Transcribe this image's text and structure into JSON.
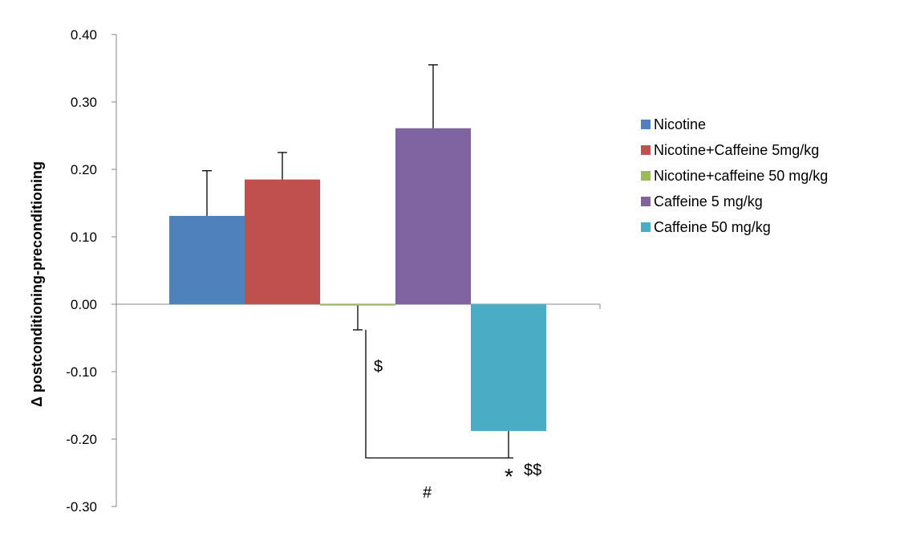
{
  "chart_data": {
    "type": "bar",
    "title": "",
    "xlabel": "",
    "ylabel": "Δ postconditioning-preconditioning",
    "ylim": [
      -0.3,
      0.4
    ],
    "yticks": [
      "0.40",
      "0.30",
      "0.20",
      "0.10",
      "0.00",
      "-0.10",
      "-0.20",
      "-0.30"
    ],
    "grid": false,
    "legend_position": "right",
    "series": [
      {
        "name": "Nicotine",
        "value": 0.131,
        "error": 0.067,
        "color": "#4F81BD"
      },
      {
        "name": "Nicotine+Caffeine 5mg/kg",
        "value": 0.185,
        "error": 0.04,
        "color": "#C0504D"
      },
      {
        "name": "Nicotine+caffeine 50 mg/kg",
        "value": -0.002,
        "error": 0.036,
        "color": "#9BBB59"
      },
      {
        "name": "Caffeine 5 mg/kg",
        "value": 0.261,
        "error": 0.094,
        "color": "#8064A2"
      },
      {
        "name": "Caffeine 50 mg/kg",
        "value": -0.188,
        "error": 0.04,
        "color": "#4BACC6"
      }
    ],
    "annotations": {
      "dollar": "$",
      "star": "*",
      "double_dollar": "$$",
      "hash": "#"
    }
  }
}
